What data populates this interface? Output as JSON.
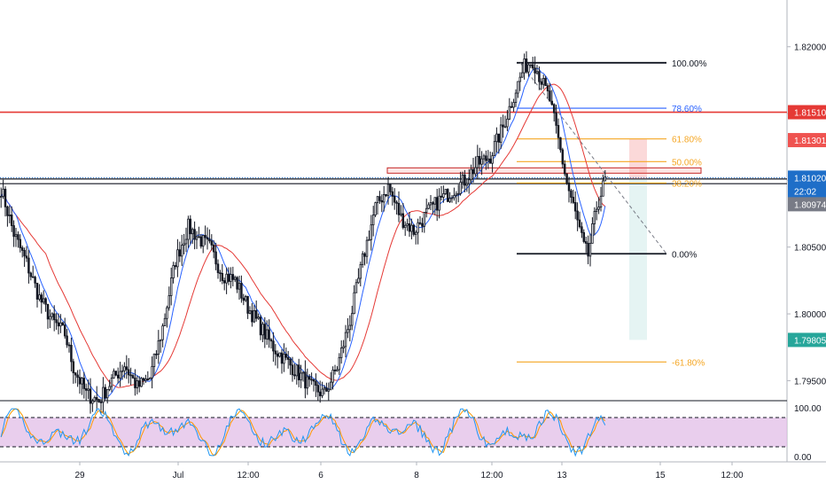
{
  "chart_data": {
    "type": "candlestick",
    "price_axis": {
      "ticks": [
        "1.82000",
        "1.81500",
        "1.81000",
        "1.80500",
        "1.80000",
        "1.79500"
      ],
      "tick_values": [
        1.82,
        1.815,
        1.81,
        1.805,
        1.8,
        1.795
      ],
      "range": [
        1.7935,
        1.8235
      ]
    },
    "time_axis": {
      "ticks": [
        "29",
        "Jul",
        "12:00",
        "6",
        "8",
        "12:00",
        "13",
        "15",
        "12:00"
      ]
    },
    "price_labels": [
      {
        "text": "1.81510",
        "value": 1.8151,
        "color": "#e53935",
        "text_color": "#ffffff"
      },
      {
        "text": "1.81301",
        "value": 1.81301,
        "color": "#ef5350",
        "text_color": "#ffffff"
      },
      {
        "text": "1.81020",
        "value": 1.8102,
        "color": "#1e6ec8",
        "text_color": "#ffffff"
      },
      {
        "text": "22:02",
        "value": 1.8092,
        "color": "#1e6ec8",
        "text_color": "#ffffff"
      },
      {
        "text": "1.80974",
        "value": 1.80974,
        "color": "#787b86",
        "text_color": "#ffffff"
      },
      {
        "text": "1.79805",
        "value": 1.79805,
        "color": "#26a69a",
        "text_color": "#ffffff"
      }
    ],
    "horizontal_levels": [
      {
        "value": 1.8151,
        "color": "#e53935"
      },
      {
        "value": 1.8101,
        "color": "#131722"
      },
      {
        "value": 1.80975,
        "color": "#131722"
      }
    ],
    "fibonacci": {
      "levels": [
        {
          "label": "100.00%",
          "value": 1.8188,
          "color": "#131722"
        },
        {
          "label": "78.60%",
          "value": 1.8154,
          "color": "#2962ff"
        },
        {
          "label": "61.80%",
          "value": 1.8131,
          "color": "#f5a623"
        },
        {
          "label": "50.00%",
          "value": 1.8114,
          "color": "#f5a623"
        },
        {
          "label": "38.20%",
          "value": 1.8098,
          "color": "#f5a623"
        },
        {
          "label": "0.00%",
          "value": 1.8045,
          "color": "#131722"
        },
        {
          "label": "-61.80%",
          "value": 1.7964,
          "color": "#f5a623"
        }
      ]
    },
    "stoch_axis": {
      "ticks": [
        "100.00",
        "0.00"
      ],
      "band": [
        20,
        80
      ]
    },
    "colors": {
      "up_candle": "#131722",
      "down_candle": "#131722",
      "ma_fast": "#2962ff",
      "ma_slow": "#e53935",
      "stoch_k": "#2196f3",
      "stoch_d": "#ff9800",
      "stoch_band": "#e1bee7"
    }
  }
}
